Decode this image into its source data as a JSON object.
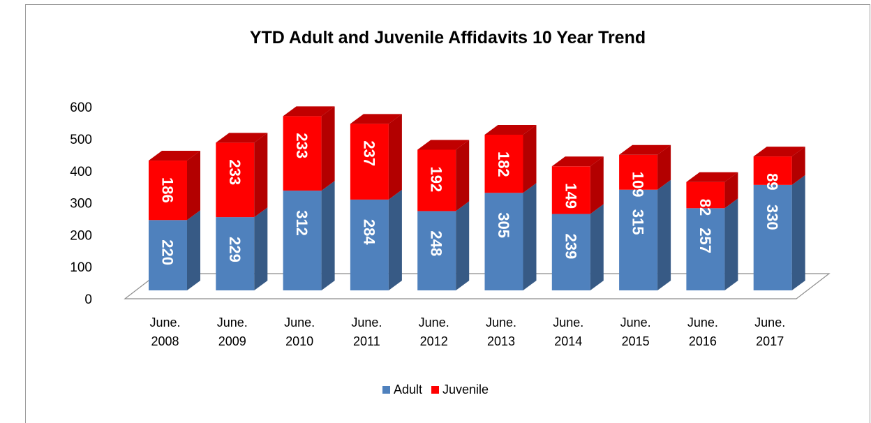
{
  "chart_data": {
    "type": "bar",
    "stacked": true,
    "three_d": true,
    "title": "YTD Adult and Juvenile Affidavits 10 Year Trend",
    "categories": [
      [
        "June.",
        "2008"
      ],
      [
        "June.",
        "2009"
      ],
      [
        "June.",
        "2010"
      ],
      [
        "June.",
        "2011"
      ],
      [
        "June.",
        "2012"
      ],
      [
        "June.",
        "2013"
      ],
      [
        "June.",
        "2014"
      ],
      [
        "June.",
        "2015"
      ],
      [
        "June.",
        "2016"
      ],
      [
        "June.",
        "2017"
      ]
    ],
    "series": [
      {
        "name": "Adult",
        "color": "#4f81bd",
        "side_color": "#375a85",
        "top_color": "#6a95c9",
        "values": [
          220,
          229,
          312,
          284,
          248,
          305,
          239,
          315,
          257,
          330
        ]
      },
      {
        "name": "Juvenile",
        "color": "#ff0000",
        "side_color": "#b30000",
        "top_color": "#c00000",
        "values": [
          186,
          233,
          233,
          237,
          192,
          182,
          149,
          109,
          82,
          89
        ]
      }
    ],
    "yticks": [
      0,
      100,
      200,
      300,
      400,
      500,
      600
    ],
    "ylim": [
      0,
      600
    ],
    "legend_position": "bottom",
    "data_labels": true
  }
}
